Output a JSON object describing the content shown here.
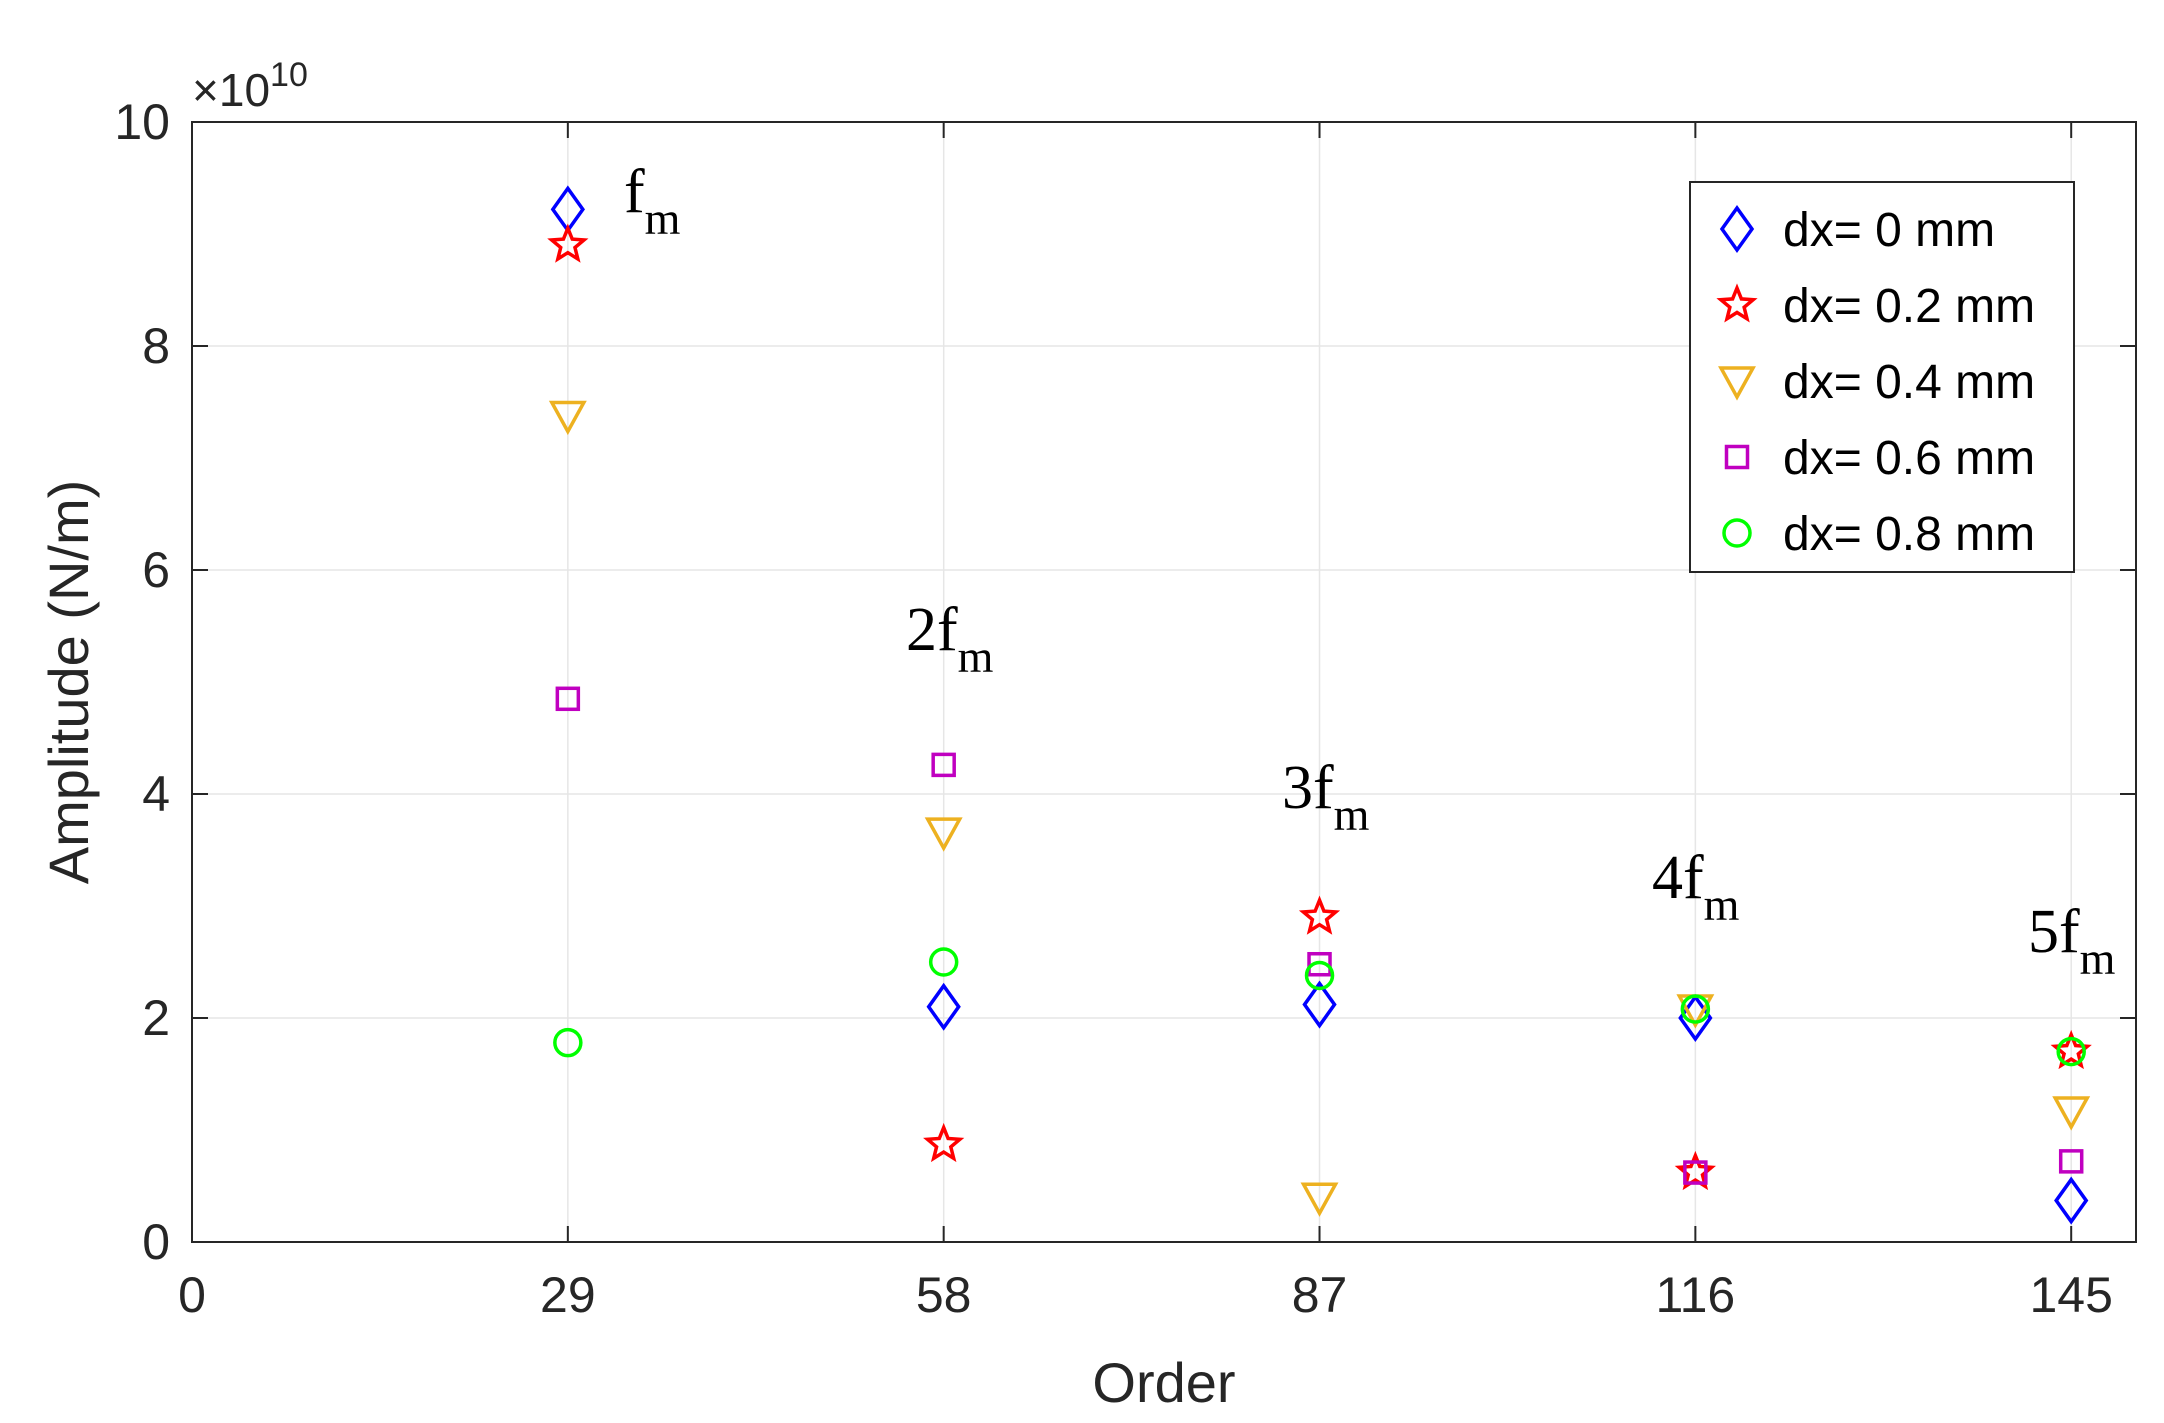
{
  "chart_data": {
    "type": "scatter",
    "title": "",
    "xlabel": "Order",
    "ylabel": "Amplitude (N/m)",
    "xlim": [
      0,
      150
    ],
    "ylim": [
      0,
      10
    ],
    "y_exponent_label": "×10",
    "y_exponent_power": "10",
    "xticks": [
      0,
      29,
      58,
      87,
      116,
      145
    ],
    "xtick_labels": [
      "0",
      "29",
      "58",
      "87",
      "116",
      "145"
    ],
    "yticks": [
      0,
      2,
      4,
      6,
      8,
      10
    ],
    "ytick_labels": [
      "0",
      "2",
      "4",
      "6",
      "8",
      "10"
    ],
    "grid": true,
    "legend_position": "top-right",
    "x": [
      29,
      58,
      87,
      116,
      145
    ],
    "series": [
      {
        "name": "dx= 0 mm",
        "marker": "diamond",
        "color": "#0000ff",
        "values": [
          9.22,
          2.1,
          2.12,
          2.0,
          0.37
        ]
      },
      {
        "name": "dx= 0.2 mm",
        "marker": "star",
        "color": "#ff0000",
        "values": [
          8.9,
          0.87,
          2.9,
          0.62,
          1.7
        ]
      },
      {
        "name": "dx= 0.4 mm",
        "marker": "triangle",
        "color": "#edb120",
        "values": [
          7.38,
          3.66,
          0.4,
          2.08,
          1.17
        ]
      },
      {
        "name": "dx= 0.6 mm",
        "marker": "square",
        "color": "#c000c0",
        "values": [
          4.85,
          4.26,
          2.48,
          0.62,
          0.72
        ]
      },
      {
        "name": "dx= 0.8 mm",
        "marker": "circle",
        "color": "#00ff00",
        "values": [
          1.78,
          2.5,
          2.38,
          2.08,
          1.7
        ]
      }
    ],
    "annotations": [
      {
        "text": "f",
        "sub": "m",
        "x": 29
      },
      {
        "text": "2f",
        "sub": "m",
        "x": 58
      },
      {
        "text": "3f",
        "sub": "m",
        "x": 87
      },
      {
        "text": "4f",
        "sub": "m",
        "x": 116
      },
      {
        "text": "5f",
        "sub": "m",
        "x": 145
      }
    ]
  }
}
